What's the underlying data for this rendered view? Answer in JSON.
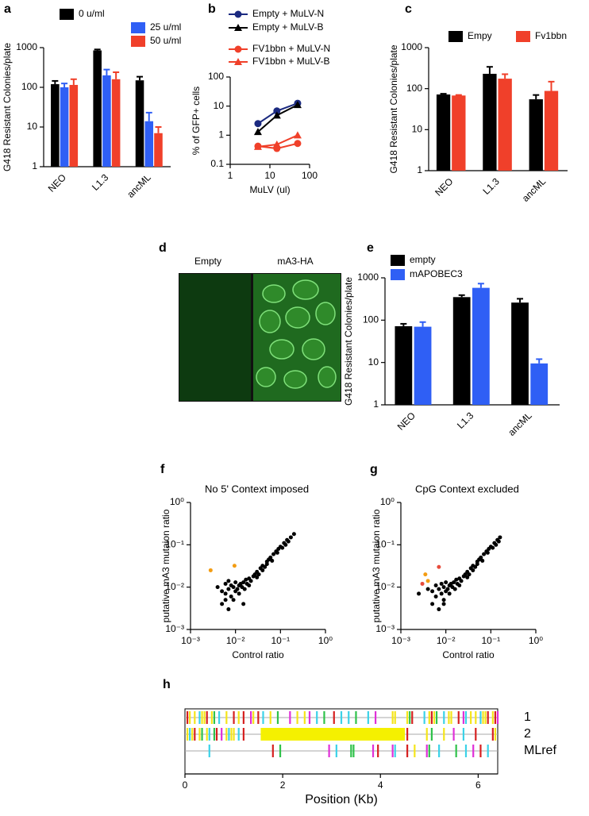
{
  "chart_data": [
    {
      "type": "bar",
      "label": "a",
      "ylabel": "G418 Resistant Colonies/plate",
      "ylog": true,
      "categories": [
        "NEO",
        "L1.3",
        "ancML"
      ],
      "series": [
        {
          "name": "0 u/ml",
          "color": "#000000",
          "values": [
            120,
            850,
            150
          ],
          "errors": [
            25,
            50,
            35
          ]
        },
        {
          "name": "25 u/ml",
          "color": "#2f5ff5",
          "values": [
            100,
            200,
            14
          ],
          "errors": [
            25,
            80,
            9
          ]
        },
        {
          "name": "50 u/ml",
          "color": "#f0402a",
          "values": [
            115,
            160,
            7
          ],
          "errors": [
            45,
            80,
            3
          ]
        }
      ],
      "ylim": [
        1,
        1000
      ],
      "yticks": [
        1,
        10,
        100,
        1000
      ]
    },
    {
      "type": "line",
      "label": "b",
      "xlabel": "MuLV (ul)",
      "ylabel": "% of GFP+ cells",
      "xlog": true,
      "ylog": true,
      "x": [
        5,
        15,
        50
      ],
      "series": [
        {
          "name": "Empty + MuLV-N",
          "color": "#1b2a80",
          "marker": "circle",
          "values": [
            2.5,
            6.8,
            12.5
          ]
        },
        {
          "name": "Empty + MuLV-B",
          "color": "#000000",
          "marker": "triangle",
          "values": [
            1.3,
            4.8,
            11
          ]
        },
        {
          "name": "FV1bbn + MuLV-N",
          "color": "#f0402a",
          "marker": "circle",
          "values": [
            0.42,
            0.35,
            0.52
          ]
        },
        {
          "name": "FV1bbn + MuLV-B",
          "color": "#f0402a",
          "marker": "triangle",
          "values": [
            0.4,
            0.48,
            1.0
          ]
        }
      ],
      "xlim": [
        1,
        100
      ],
      "xticks": [
        1,
        10,
        100
      ],
      "ylim": [
        0.1,
        100
      ],
      "yticks": [
        0.1,
        1,
        10,
        100
      ]
    },
    {
      "type": "bar",
      "label": "c",
      "ylabel": "G418 Resistant Colonies/plate",
      "ylog": true,
      "categories": [
        "NEO",
        "L1.3",
        "ancML"
      ],
      "series": [
        {
          "name": "Empy",
          "color": "#000000",
          "values": [
            72,
            230,
            55
          ],
          "errors": [
            3,
            110,
            15
          ]
        },
        {
          "name": "Fv1bbn",
          "color": "#f0402a",
          "values": [
            68,
            175,
            88
          ],
          "errors": [
            2,
            50,
            60
          ]
        }
      ],
      "ylim": [
        1,
        1000
      ],
      "yticks": [
        1,
        10,
        100,
        1000
      ]
    },
    {
      "type": "bar",
      "label": "e",
      "ylabel": "G418 Resistant Colonies/plate",
      "ylog": true,
      "categories": [
        "NEO",
        "L1.3",
        "ancML"
      ],
      "series": [
        {
          "name": "empty",
          "color": "#000000",
          "values": [
            72,
            350,
            260
          ],
          "errors": [
            10,
            40,
            60
          ]
        },
        {
          "name": "mAPOBEC3",
          "color": "#2f5ff5",
          "values": [
            70,
            580,
            9.5
          ],
          "errors": [
            20,
            150,
            2.5
          ]
        }
      ],
      "ylim": [
        1,
        1000
      ],
      "yticks": [
        1,
        10,
        100,
        {
          "value": 1000,
          "label": "1000"
        }
      ]
    },
    {
      "type": "scatter",
      "label": "f",
      "title": "No 5' Context imposed",
      "xlabel": "Control ratio",
      "ylabel": "putative mA3 mutaion ratio",
      "xlog": true,
      "ylog": true,
      "series": [
        {
          "color": "#000000",
          "x": [
            0.004,
            0.005,
            0.006,
            0.006,
            0.007,
            0.007,
            0.008,
            0.008,
            0.009,
            0.009,
            0.01,
            0.01,
            0.011,
            0.012,
            0.012,
            0.013,
            0.014,
            0.015,
            0.016,
            0.017,
            0.018,
            0.02,
            0.02,
            0.022,
            0.025,
            0.027,
            0.03,
            0.03,
            0.033,
            0.036,
            0.04,
            0.04,
            0.045,
            0.05,
            0.05,
            0.055,
            0.06,
            0.065,
            0.07,
            0.08,
            0.085,
            0.09,
            0.1,
            0.11,
            0.12,
            0.13,
            0.14,
            0.15,
            0.17,
            0.2,
            0.005,
            0.007,
            0.006,
            0.015
          ],
          "values": [
            0.01,
            0.008,
            0.012,
            0.007,
            0.009,
            0.014,
            0.006,
            0.011,
            0.01,
            0.005,
            0.008,
            0.013,
            0.009,
            0.007,
            0.011,
            0.012,
            0.01,
            0.013,
            0.009,
            0.015,
            0.012,
            0.011,
            0.016,
            0.014,
            0.018,
            0.02,
            0.017,
            0.023,
            0.02,
            0.028,
            0.025,
            0.032,
            0.03,
            0.04,
            0.035,
            0.045,
            0.05,
            0.042,
            0.06,
            0.07,
            0.065,
            0.08,
            0.09,
            0.085,
            0.11,
            0.1,
            0.13,
            0.12,
            0.15,
            0.18,
            0.004,
            0.003,
            0.005,
            0.004
          ]
        },
        {
          "color": "#f39c12",
          "x": [
            0.0028,
            0.0095
          ],
          "values": [
            0.025,
            0.032
          ]
        }
      ],
      "xlim": [
        0.001,
        1
      ],
      "xticks": [
        {
          "value": 0.001,
          "label": "10⁻³"
        },
        {
          "value": 0.01,
          "label": "10⁻²"
        },
        {
          "value": 0.1,
          "label": "10⁻¹"
        },
        {
          "value": 1,
          "label": "10⁰"
        }
      ],
      "ylim": [
        0.001,
        1
      ],
      "yticks": [
        {
          "value": 0.001,
          "label": "10⁻³"
        },
        {
          "value": 0.01,
          "label": "10⁻²"
        },
        {
          "value": 0.1,
          "label": "10⁻¹"
        },
        {
          "value": 1,
          "label": "10⁰"
        }
      ]
    },
    {
      "type": "scatter",
      "label": "g",
      "title": "CpG Context excluded",
      "xlabel": "Control ratio",
      "ylabel": "putative mA3 mutaion ratio",
      "xlog": true,
      "ylog": true,
      "series": [
        {
          "color": "#000000",
          "x": [
            0.0025,
            0.004,
            0.005,
            0.006,
            0.006,
            0.007,
            0.008,
            0.008,
            0.009,
            0.009,
            0.01,
            0.01,
            0.011,
            0.012,
            0.012,
            0.013,
            0.014,
            0.015,
            0.016,
            0.017,
            0.018,
            0.02,
            0.02,
            0.022,
            0.025,
            0.027,
            0.03,
            0.03,
            0.033,
            0.036,
            0.04,
            0.04,
            0.045,
            0.05,
            0.05,
            0.055,
            0.06,
            0.065,
            0.07,
            0.08,
            0.085,
            0.09,
            0.1,
            0.11,
            0.12,
            0.13,
            0.14,
            0.15,
            0.16,
            0.005,
            0.007,
            0.009
          ],
          "values": [
            0.007,
            0.009,
            0.008,
            0.011,
            0.006,
            0.009,
            0.007,
            0.012,
            0.01,
            0.005,
            0.008,
            0.013,
            0.009,
            0.007,
            0.011,
            0.012,
            0.01,
            0.013,
            0.009,
            0.015,
            0.012,
            0.011,
            0.016,
            0.014,
            0.018,
            0.02,
            0.017,
            0.023,
            0.02,
            0.028,
            0.025,
            0.032,
            0.03,
            0.04,
            0.035,
            0.045,
            0.05,
            0.042,
            0.06,
            0.07,
            0.065,
            0.08,
            0.09,
            0.085,
            0.11,
            0.1,
            0.13,
            0.12,
            0.15,
            0.004,
            0.003,
            0.004
          ]
        },
        {
          "color": "#f39c12",
          "x": [
            0.0035,
            0.004
          ],
          "values": [
            0.02,
            0.014
          ]
        },
        {
          "color": "#e74c3c",
          "x": [
            0.003,
            0.007
          ],
          "values": [
            0.012,
            0.03
          ]
        }
      ],
      "xlim": [
        0.001,
        1
      ],
      "xticks": [
        {
          "value": 0.001,
          "label": "10⁻³"
        },
        {
          "value": 0.01,
          "label": "10⁻²"
        },
        {
          "value": 0.1,
          "label": "10⁻¹"
        },
        {
          "value": 1,
          "label": "10⁰"
        }
      ],
      "ylim": [
        0.001,
        1
      ],
      "yticks": [
        {
          "value": 0.001,
          "label": "10⁻³"
        },
        {
          "value": 0.01,
          "label": "10⁻²"
        },
        {
          "value": 0.1,
          "label": "10⁻¹"
        },
        {
          "value": 1,
          "label": "10⁰"
        }
      ]
    },
    {
      "type": "track",
      "label": "h",
      "xlabel": "Position (Kb)",
      "xlim": [
        0,
        6.4
      ],
      "xticks": [
        0,
        2,
        4,
        6
      ],
      "rows": [
        {
          "name": "1",
          "tracks": [
            {
              "color": "#f5e51a",
              "x": [
                0.1,
                0.2,
                0.35,
                0.4,
                0.55,
                0.85,
                1.1,
                1.4,
                1.75,
                2.3,
                2.45,
                4.25,
                4.3,
                4.55,
                5.0,
                5.1,
                5.4,
                5.45,
                5.85,
                5.95,
                6.1,
                6.15,
                6.3
              ]
            },
            {
              "color": "#d62020",
              "x": [
                0.05,
                0.45,
                1.0,
                1.2,
                1.5,
                3.05,
                4.65,
                5.05,
                5.6,
                6.2,
                6.35
              ]
            },
            {
              "color": "#3cd2e8",
              "x": [
                0.3,
                0.7,
                1.6,
                2.7,
                3.2,
                3.35,
                3.75,
                4.9,
                5.3,
                5.75,
                6.05
              ]
            },
            {
              "color": "#2fc24a",
              "x": [
                0.6,
                1.9,
                2.85,
                3.5,
                4.6,
                5.15
              ]
            },
            {
              "color": "#e030d8",
              "x": [
                1.35,
                2.15,
                2.55,
                3.9,
                5.7,
                6.4
              ]
            }
          ],
          "spans": []
        },
        {
          "name": "2",
          "tracks": [
            {
              "color": "#f5e51a",
              "x": [
                0.05,
                0.15,
                0.3,
                0.45,
                0.85,
                0.95,
                1.0,
                4.95,
                5.3,
                6.35
              ]
            },
            {
              "color": "#d62020",
              "x": [
                0.2,
                0.65,
                1.2,
                4.55,
                5.95,
                6.3
              ]
            },
            {
              "color": "#3cd2e8",
              "x": [
                0.1,
                0.5,
                0.9,
                1.1,
                5.7
              ]
            },
            {
              "color": "#2fc24a",
              "x": [
                0.35,
                0.6,
                5.05
              ]
            },
            {
              "color": "#e030d8",
              "x": [
                0.75,
                5.5
              ]
            }
          ],
          "spans": [
            {
              "color": "#f5f000",
              "x": [
                1.55,
                4.5
              ]
            }
          ]
        },
        {
          "name": "MLref",
          "tracks": [
            {
              "color": "#3cd2e8",
              "x": [
                0.5,
                3.1,
                4.3,
                5.2,
                5.75,
                6.2
              ]
            },
            {
              "color": "#d62020",
              "x": [
                1.8,
                3.95,
                4.55,
                6.05
              ]
            },
            {
              "color": "#2fc24a",
              "x": [
                1.95,
                3.4,
                3.45,
                5.0,
                5.55
              ]
            },
            {
              "color": "#e030d8",
              "x": [
                2.95,
                3.85,
                4.25,
                4.95,
                5.9
              ]
            },
            {
              "color": "#f5e51a",
              "x": [
                4.7
              ]
            }
          ],
          "spans": []
        }
      ]
    }
  ],
  "image_panel": {
    "label": "d",
    "captions": [
      "Empty",
      "mA3-HA"
    ]
  }
}
